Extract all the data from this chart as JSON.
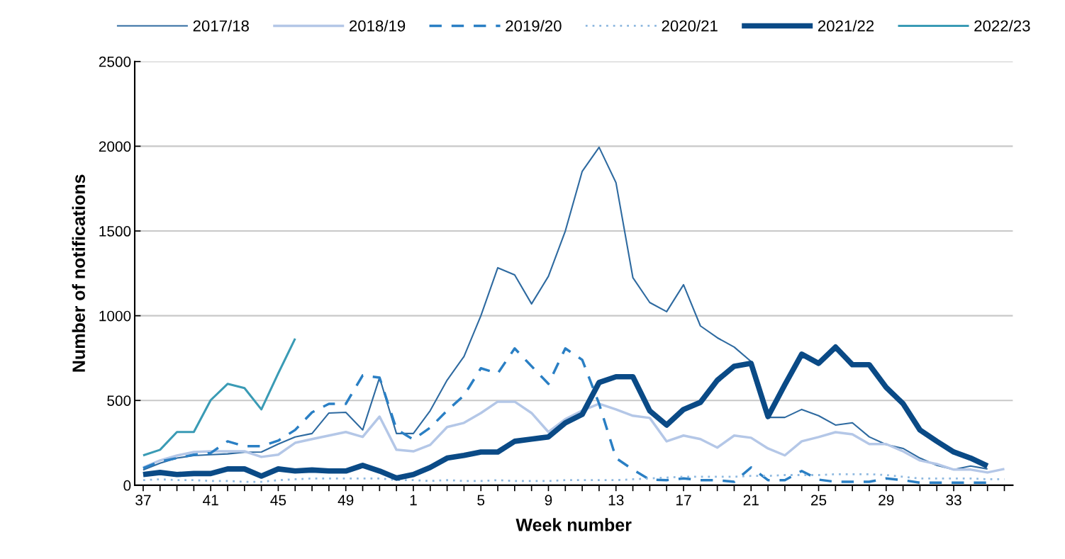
{
  "chart_data": {
    "type": "line",
    "xlabel": "Week number",
    "ylabel": "Number of notifications",
    "categories": [
      "37",
      null,
      null,
      null,
      "41",
      null,
      null,
      null,
      "45",
      null,
      null,
      null,
      "49",
      null,
      null,
      null,
      "1",
      null,
      null,
      null,
      "5",
      null,
      null,
      null,
      "9",
      null,
      null,
      null,
      "13",
      null,
      null,
      null,
      "17",
      null,
      null,
      null,
      "21",
      null,
      null,
      null,
      "25",
      null,
      null,
      null,
      "29",
      null,
      null,
      null,
      "33",
      null,
      null,
      null
    ],
    "ylim": [
      0,
      2500
    ],
    "yticks": [
      0,
      500,
      1000,
      1500,
      2000,
      2500
    ],
    "grid": "y",
    "legend": "top",
    "marker": "none",
    "series": [
      {
        "name": "2017/18",
        "color": "#2e6aa0",
        "line_style": "solid",
        "values": [
          90,
          130,
          160,
          175,
          180,
          185,
          195,
          196,
          243,
          285,
          305,
          426,
          430,
          326,
          635,
          305,
          305,
          440,
          620,
          760,
          1000,
          1283,
          1241,
          1070,
          1233,
          1500,
          1852,
          1994,
          1785,
          1225,
          1078,
          1024,
          1183,
          940,
          870,
          815,
          730,
          400,
          400,
          447,
          410,
          355,
          368,
          285,
          240,
          217,
          160,
          117,
          92,
          113,
          96,
          null
        ]
      },
      {
        "name": "2018/19",
        "color": "#b4c7e7",
        "line_style": "solid",
        "values": [
          105,
          146,
          175,
          196,
          200,
          200,
          200,
          167,
          180,
          250,
          272,
          293,
          314,
          285,
          405,
          209,
          200,
          238,
          343,
          368,
          426,
          493,
          493,
          426,
          314,
          390,
          440,
          481,
          447,
          410,
          397,
          259,
          293,
          272,
          222,
          293,
          280,
          217,
          176,
          259,
          284,
          313,
          300,
          243,
          243,
          200,
          146,
          125,
          92,
          92,
          75,
          96
        ]
      },
      {
        "name": "2019/20",
        "color": "#2a7fc4",
        "line_style": "dashed",
        "values": [
          100,
          140,
          160,
          180,
          190,
          259,
          230,
          230,
          263,
          326,
          430,
          480,
          480,
          648,
          635,
          330,
          270,
          340,
          440,
          530,
          690,
          660,
          807,
          702,
          598,
          807,
          740,
          481,
          160,
          92,
          33,
          30,
          40,
          30,
          30,
          20,
          105,
          30,
          30,
          84,
          33,
          20,
          20,
          20,
          40,
          30,
          15,
          15,
          15,
          15,
          15,
          null
        ]
      },
      {
        "name": "2020/21",
        "color": "#8fb9e0",
        "line_style": "dotted",
        "values": [
          30,
          35,
          30,
          30,
          25,
          25,
          20,
          20,
          30,
          35,
          40,
          40,
          40,
          40,
          40,
          30,
          30,
          25,
          30,
          25,
          25,
          30,
          25,
          25,
          25,
          30,
          30,
          30,
          30,
          35,
          40,
          45,
          50,
          50,
          50,
          50,
          55,
          55,
          60,
          60,
          60,
          65,
          65,
          65,
          60,
          50,
          40,
          40,
          40,
          40,
          35,
          35
        ]
      },
      {
        "name": "2021/22",
        "color": "#0a4a86",
        "line_style": "solid",
        "values": [
          63,
          75,
          63,
          69,
          69,
          96,
          96,
          54,
          96,
          84,
          90,
          84,
          84,
          117,
          84,
          42,
          63,
          105,
          160,
          176,
          196,
          196,
          259,
          272,
          285,
          368,
          418,
          606,
          640,
          640,
          439,
          355,
          447,
          489,
          619,
          702,
          719,
          405,
          593,
          773,
          719,
          815,
          711,
          711,
          577,
          481,
          326,
          259,
          196,
          160,
          113,
          null
        ]
      },
      {
        "name": "2022/23",
        "color": "#3a9bb5",
        "line_style": "solid",
        "values": [
          176,
          209,
          314,
          314,
          502,
          598,
          573,
          447,
          660,
          865,
          null,
          null,
          null,
          null,
          null,
          null,
          null,
          null,
          null,
          null,
          null,
          null,
          null,
          null,
          null,
          null,
          null,
          null,
          null,
          null,
          null,
          null,
          null,
          null,
          null,
          null,
          null,
          null,
          null,
          null,
          null,
          null,
          null,
          null,
          null,
          null,
          null,
          null,
          null,
          null,
          null,
          null
        ]
      }
    ]
  }
}
